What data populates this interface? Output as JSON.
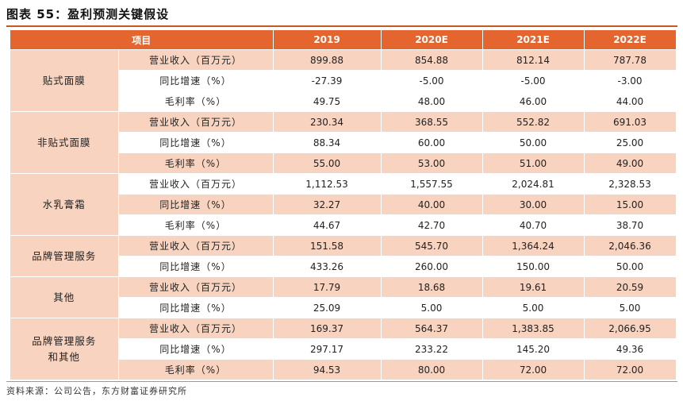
{
  "title": "图表 55：盈利预测关键假设",
  "headers": [
    "项目",
    "2019",
    "2020E",
    "2021E",
    "2022E"
  ],
  "groups": [
    {
      "name_lines": [
        "贴式面膜"
      ],
      "rows": [
        {
          "metric": "营业收入（百万元）",
          "values": [
            "899.88",
            "854.88",
            "812.14",
            "787.78"
          ],
          "shaded": true
        },
        {
          "metric": "同比增速（%）",
          "values": [
            "-27.39",
            "-5.00",
            "-5.00",
            "-3.00"
          ],
          "shaded": false
        },
        {
          "metric": "毛利率（%）",
          "values": [
            "49.75",
            "48.00",
            "46.00",
            "44.00"
          ],
          "shaded": false
        }
      ]
    },
    {
      "name_lines": [
        "非贴式面膜"
      ],
      "rows": [
        {
          "metric": "营业收入（百万元）",
          "values": [
            "230.34",
            "368.55",
            "552.82",
            "691.03"
          ],
          "shaded": true
        },
        {
          "metric": "同比增速（%）",
          "values": [
            "88.34",
            "60.00",
            "50.00",
            "25.00"
          ],
          "shaded": false
        },
        {
          "metric": "毛利率（%）",
          "values": [
            "55.00",
            "53.00",
            "51.00",
            "49.00"
          ],
          "shaded": true
        }
      ]
    },
    {
      "name_lines": [
        "水乳膏霜"
      ],
      "rows": [
        {
          "metric": "营业收入（百万元）",
          "values": [
            "1,112.53",
            "1,557.55",
            "2,024.81",
            "2,328.53"
          ],
          "shaded": false
        },
        {
          "metric": "同比增速（%）",
          "values": [
            "32.27",
            "40.00",
            "30.00",
            "15.00"
          ],
          "shaded": true
        },
        {
          "metric": "毛利率（%）",
          "values": [
            "44.67",
            "42.70",
            "40.70",
            "38.70"
          ],
          "shaded": false
        }
      ]
    },
    {
      "name_lines": [
        "品牌管理服务"
      ],
      "rows": [
        {
          "metric": "营业收入（百万元）",
          "values": [
            "151.58",
            "545.70",
            "1,364.24",
            "2,046.36"
          ],
          "shaded": true
        },
        {
          "metric": "同比增速（%）",
          "values": [
            "433.26",
            "260.00",
            "150.00",
            "50.00"
          ],
          "shaded": false
        }
      ]
    },
    {
      "name_lines": [
        "其他"
      ],
      "rows": [
        {
          "metric": "营业收入（百万元）",
          "values": [
            "17.79",
            "18.68",
            "19.61",
            "20.59"
          ],
          "shaded": true
        },
        {
          "metric": "同比增速（%）",
          "values": [
            "25.09",
            "5.00",
            "5.00",
            "5.00"
          ],
          "shaded": false
        }
      ]
    },
    {
      "name_lines": [
        "品牌管理服务",
        "和其他"
      ],
      "rows": [
        {
          "metric": "营业收入（百万元）",
          "values": [
            "169.37",
            "564.37",
            "1,383.85",
            "2,066.95"
          ],
          "shaded": true
        },
        {
          "metric": "同比增速（%）",
          "values": [
            "297.17",
            "233.22",
            "145.20",
            "49.36"
          ],
          "shaded": false
        },
        {
          "metric": "毛利率（%）",
          "values": [
            "94.53",
            "80.00",
            "72.00",
            "72.00"
          ],
          "shaded": true
        }
      ]
    }
  ],
  "source": "资料来源：公司公告，东方财富证券研究所",
  "colors": {
    "header_bg": "#e5652f",
    "shade_bg": "#f7d3c0",
    "title_rule": "#c45a1f"
  }
}
